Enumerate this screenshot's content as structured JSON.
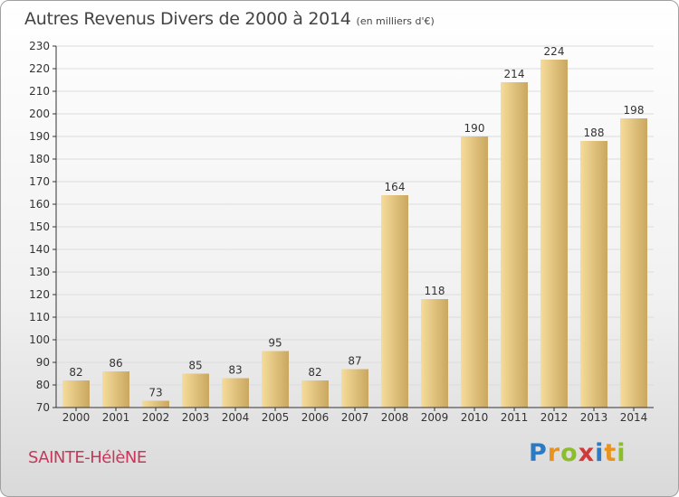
{
  "header": {
    "title": "Autres Revenus Divers de 2000 à 2014",
    "unit": "(en milliers d'€)"
  },
  "footer": {
    "commune": "SAINTE-HélèNE",
    "logo": "Proxiti"
  },
  "colors": {
    "bar_light": "#f6dc9a",
    "bar_dark": "#c9a760",
    "axis": "#333333",
    "grid": "#dcdcdc",
    "commune": "#c8365a"
  },
  "chart_data": {
    "type": "bar",
    "title": "Autres Revenus Divers de 2000 à 2014",
    "subtitle": "(en milliers d'€)",
    "xlabel": "",
    "ylabel": "",
    "categories": [
      "2000",
      "2001",
      "2002",
      "2003",
      "2004",
      "2005",
      "2006",
      "2007",
      "2008",
      "2009",
      "2010",
      "2011",
      "2012",
      "2013",
      "2014"
    ],
    "values": [
      82,
      86,
      73,
      85,
      83,
      95,
      82,
      87,
      164,
      118,
      190,
      214,
      224,
      188,
      198
    ],
    "ylim": [
      70,
      230
    ],
    "yticks": [
      70,
      80,
      90,
      100,
      110,
      120,
      130,
      140,
      150,
      160,
      170,
      180,
      190,
      200,
      210,
      220,
      230
    ],
    "grid": true,
    "legend": "none"
  }
}
